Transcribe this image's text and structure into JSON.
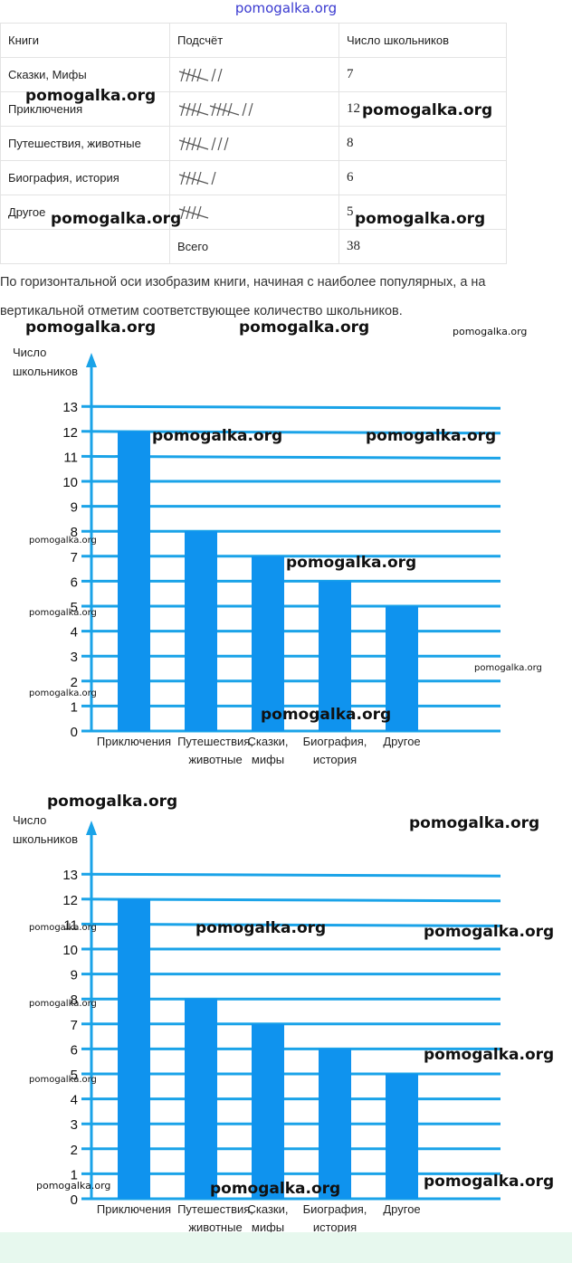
{
  "top_watermark": "pomogalka.org",
  "table": {
    "headers": [
      "Книги",
      "Подсчёт",
      "Число школьников"
    ],
    "rows": [
      {
        "book": "Сказки, Мифы",
        "tally": 7,
        "count": "7"
      },
      {
        "book": "Приключения",
        "tally": 12,
        "count": "12"
      },
      {
        "book": "Путешествия, животные",
        "tally": 8,
        "count": "8"
      },
      {
        "book": "Биография, история",
        "tally": 6,
        "count": "6"
      },
      {
        "book": "Другое",
        "tally": 5,
        "count": "5"
      }
    ],
    "total_label": "Всего",
    "total_value": "38"
  },
  "paragraph": "По горизонтальной оси изобразим книги, начиная с наиболее популярных, а на вертикальной отметим соответствующее количество школьников.",
  "watermark_text": "pomogalka.org",
  "colors": {
    "bar": "#0f93ee",
    "axis": "#1aa3e8",
    "grid": "#1aa3e8"
  },
  "chart_data": [
    {
      "type": "bar",
      "ylabel": [
        "Число",
        "школьников"
      ],
      "xlabel": "",
      "categories": [
        [
          "Приключения"
        ],
        [
          "Путешествия,",
          "животные"
        ],
        [
          "Сказки,",
          "мифы"
        ],
        [
          "Биография,",
          "история"
        ],
        [
          "Другое"
        ]
      ],
      "values": [
        12,
        8,
        7,
        6,
        5
      ],
      "ylim": [
        0,
        13
      ],
      "yticks": [
        0,
        1,
        2,
        3,
        4,
        5,
        6,
        7,
        8,
        9,
        10,
        11,
        12,
        13
      ],
      "grid": true,
      "legend": "none"
    },
    {
      "type": "bar",
      "ylabel": [
        "Число",
        "школьников"
      ],
      "xlabel": "",
      "categories": [
        [
          "Приключения"
        ],
        [
          "Путешествия,",
          "животные"
        ],
        [
          "Сказки,",
          "мифы"
        ],
        [
          "Биография,",
          "история"
        ],
        [
          "Другое"
        ]
      ],
      "values": [
        12,
        8,
        7,
        6,
        5
      ],
      "ylim": [
        0,
        13
      ],
      "yticks": [
        0,
        1,
        2,
        3,
        4,
        5,
        6,
        7,
        8,
        9,
        10,
        11,
        12,
        13
      ],
      "grid": true,
      "legend": "none"
    }
  ]
}
